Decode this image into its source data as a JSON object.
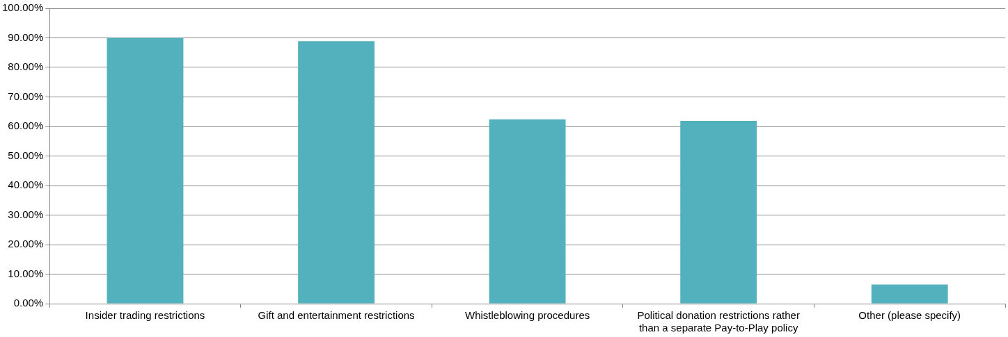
{
  "chart_data": {
    "type": "bar",
    "categories": [
      "Insider trading restrictions",
      "Gift and entertainment restrictions",
      "Whistleblowing procedures",
      "Political donation restrictions rather than a separate Pay-to-Play policy",
      "Other (please specify)"
    ],
    "values": [
      90.0,
      88.9,
      62.4,
      61.9,
      6.5
    ],
    "color": "#52b1bd",
    "ylim": [
      0,
      100
    ],
    "yticks": [
      {
        "value": 0,
        "label": "0.00%"
      },
      {
        "value": 10,
        "label": "10.00%"
      },
      {
        "value": 20,
        "label": "20.00%"
      },
      {
        "value": 30,
        "label": "30.00%"
      },
      {
        "value": 40,
        "label": "40.00%"
      },
      {
        "value": 50,
        "label": "50.00%"
      },
      {
        "value": 60,
        "label": "60.00%"
      },
      {
        "value": 70,
        "label": "70.00%"
      },
      {
        "value": 80,
        "label": "80.00%"
      },
      {
        "value": 90,
        "label": "90.00%"
      },
      {
        "value": 100,
        "label": "100.00%"
      }
    ],
    "grid": "y"
  }
}
